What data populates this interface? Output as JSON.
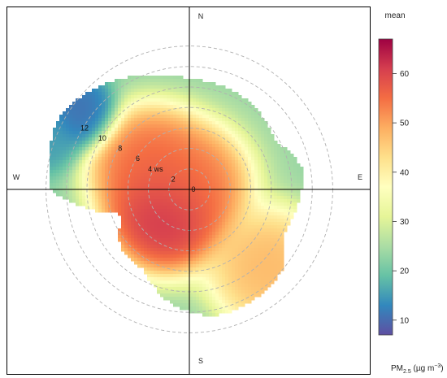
{
  "chart_data": {
    "type": "heatmap",
    "subtype": "polar",
    "compass": {
      "north": "N",
      "east": "E",
      "south": "S",
      "west": "W"
    },
    "radial_axis": {
      "label": "ws",
      "ticks": [
        0,
        2,
        4,
        6,
        8,
        10,
        12
      ],
      "max": 15
    },
    "legend": {
      "title": "mean",
      "placement": "right",
      "min": 7,
      "max": 67,
      "ticks": [
        10,
        20,
        30,
        40,
        50,
        60
      ],
      "colors": [
        "#5E4FA2",
        "#3288BD",
        "#66C2A5",
        "#ABDDA4",
        "#E6F598",
        "#FFFFBF",
        "#FEE08B",
        "#FDAE61",
        "#F46D43",
        "#D53E4F",
        "#9E0142"
      ],
      "unit": {
        "main": "PM",
        "sub": "2.5",
        "rest": " (µg m",
        "sup": "−3",
        "close": ")"
      }
    },
    "field": {
      "description_of_hotspots": [
        {
          "direction_deg": 225,
          "ws": 3.2,
          "mean": 65
        },
        {
          "direction_deg": 300,
          "ws": 4.5,
          "mean": 57
        },
        {
          "direction_deg": 0,
          "ws": 0.5,
          "mean": 55
        },
        {
          "direction_deg": 135,
          "ws": 11,
          "mean": 49
        },
        {
          "direction_deg": 305,
          "ws": 13,
          "mean": 10
        },
        {
          "direction_deg": 290,
          "ws": 15,
          "mean": 15
        }
      ]
    }
  }
}
